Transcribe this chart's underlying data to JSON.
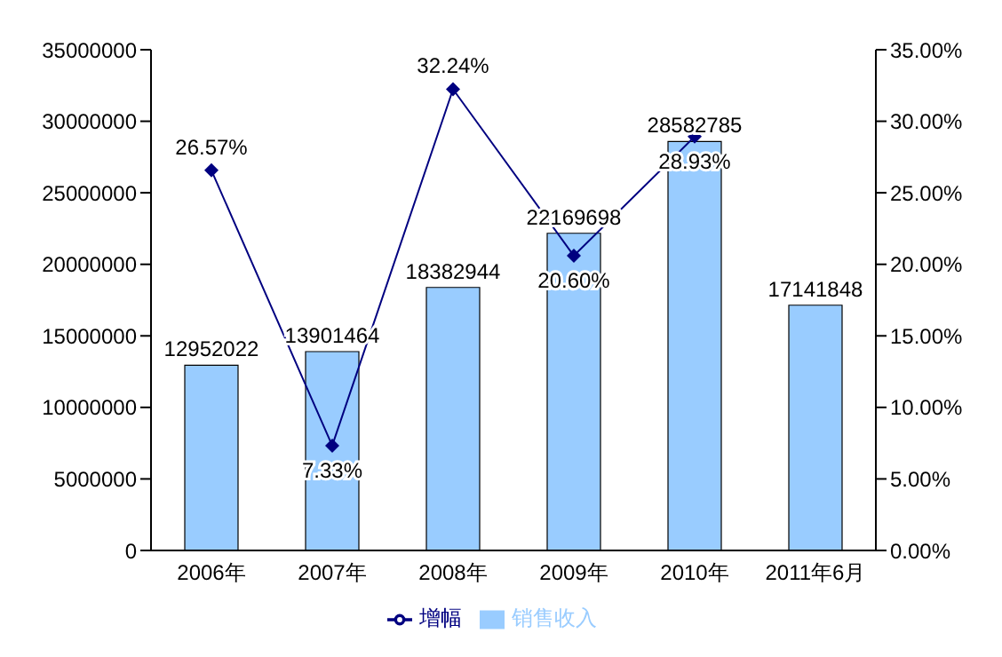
{
  "chart_data": {
    "type": "bar",
    "categories": [
      "2006年",
      "2007年",
      "2008年",
      "2009年",
      "2010年",
      "2011年6月"
    ],
    "series": [
      {
        "name": "销售收入",
        "color": "#99ccff",
        "values": [
          12952022,
          13901464,
          18382944,
          22169698,
          28582785,
          17141848
        ],
        "value_labels": [
          "12952022",
          "13901464",
          "18382944",
          "22169698",
          "28582785",
          "17141848"
        ]
      },
      {
        "name": "增幅",
        "type": "line",
        "axis": "y2",
        "color": "#000080",
        "values": [
          26.57,
          7.33,
          32.24,
          20.6,
          28.93,
          null
        ],
        "value_labels": [
          "26.57%",
          "7.33%",
          "32.24%",
          "20.60%",
          "28.93%",
          null
        ]
      }
    ],
    "ylim": [
      0,
      35000000
    ],
    "yticks": [
      0,
      5000000,
      10000000,
      15000000,
      20000000,
      25000000,
      30000000,
      35000000
    ],
    "y2lim": [
      0,
      35
    ],
    "y2ticks": [
      {
        "value": 0,
        "label": "0.00%"
      },
      {
        "value": 5,
        "label": "5.00%"
      },
      {
        "value": 10,
        "label": "10.00%"
      },
      {
        "value": 15,
        "label": "15.00%"
      },
      {
        "value": 20,
        "label": "20.00%"
      },
      {
        "value": 25,
        "label": "25.00%"
      },
      {
        "value": 30,
        "label": "30.00%"
      },
      {
        "value": 35,
        "label": "35.00%"
      }
    ],
    "legend": "bottom",
    "marker": "diamond",
    "line_style": "solid"
  }
}
